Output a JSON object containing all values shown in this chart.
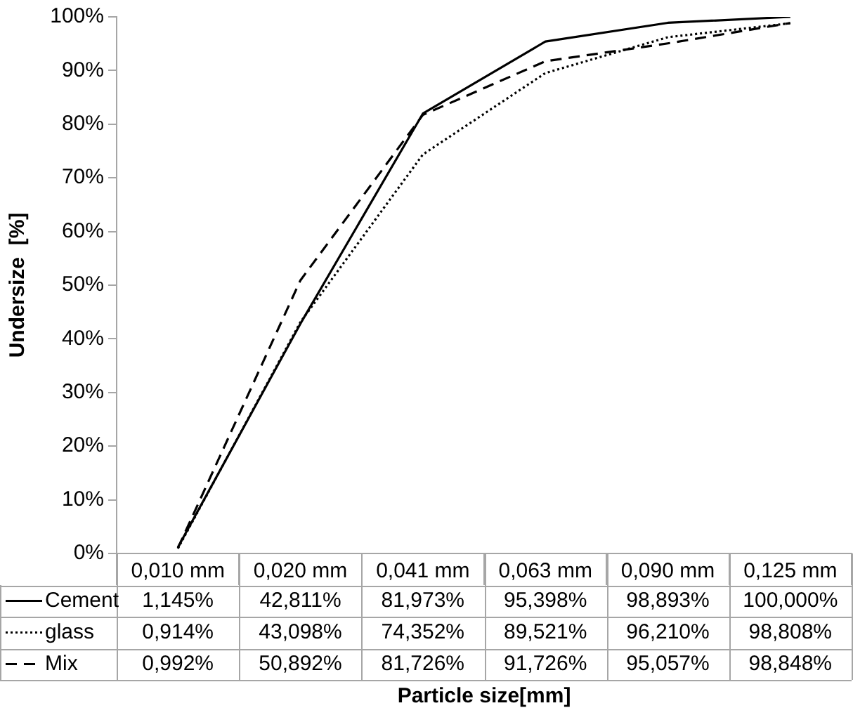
{
  "chart_data": {
    "type": "line",
    "xlabel": "Particle size[mm]",
    "ylabel": "Undersize  [%]",
    "categories": [
      "0,010 mm",
      "0,020 mm",
      "0,041 mm",
      "0,063 mm",
      "0,090 mm",
      "0,125 mm"
    ],
    "ylim": [
      0,
      100
    ],
    "yticks": [
      {
        "value": 0,
        "label": "0%"
      },
      {
        "value": 10,
        "label": "10%"
      },
      {
        "value": 20,
        "label": "20%"
      },
      {
        "value": 30,
        "label": "30%"
      },
      {
        "value": 40,
        "label": "40%"
      },
      {
        "value": 50,
        "label": "50%"
      },
      {
        "value": 60,
        "label": "60%"
      },
      {
        "value": 70,
        "label": "70%"
      },
      {
        "value": 80,
        "label": "80%"
      },
      {
        "value": 90,
        "label": "90%"
      },
      {
        "value": 100,
        "label": "100%"
      }
    ],
    "grid": false,
    "marker": "none",
    "legend": "bottom left",
    "series": [
      {
        "name": "Cement",
        "color": "#000000",
        "line_style": "solid",
        "values": [
          1.145,
          42.811,
          81.973,
          95.398,
          98.893,
          100.0
        ],
        "value_labels": [
          "1,145%",
          "42,811%",
          "81,973%",
          "95,398%",
          "98,893%",
          "100,000%"
        ]
      },
      {
        "name": "glass",
        "color": "#000000",
        "line_style": "dotted",
        "values": [
          0.914,
          43.098,
          74.352,
          89.521,
          96.21,
          98.808
        ],
        "value_labels": [
          "0,914%",
          "43,098%",
          "74,352%",
          "89,521%",
          "96,210%",
          "98,808%"
        ]
      },
      {
        "name": "Mix",
        "color": "#000000",
        "line_style": "dashed",
        "values": [
          0.992,
          50.892,
          81.726,
          91.726,
          95.057,
          98.848
        ],
        "value_labels": [
          "0,992%",
          "50,892%",
          "81,726%",
          "91,726%",
          "95,057%",
          "98,848%"
        ]
      }
    ]
  }
}
